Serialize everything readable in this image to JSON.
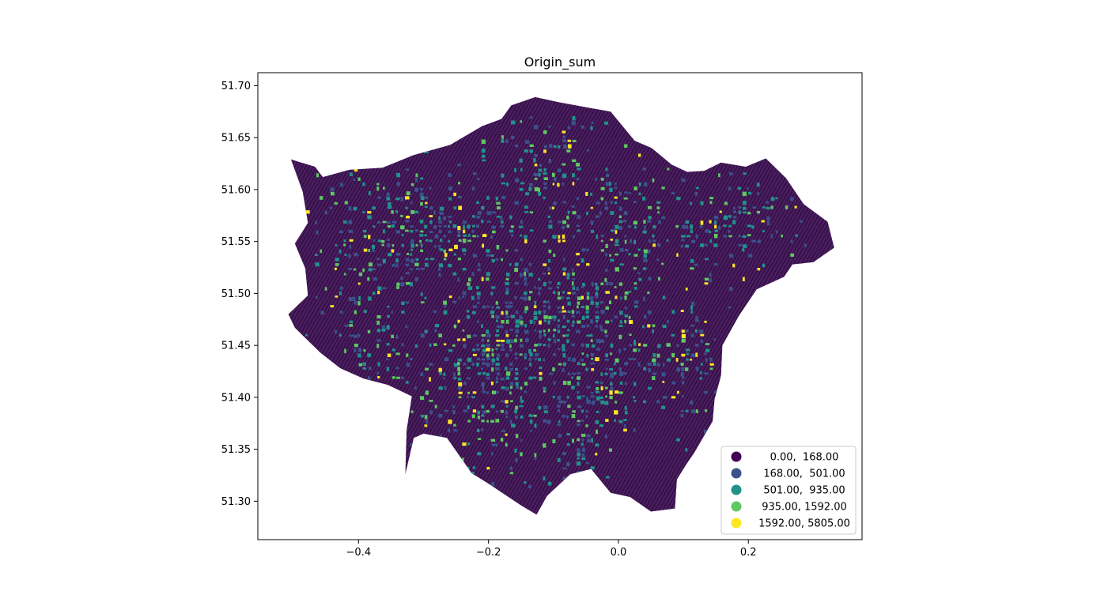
{
  "chart_data": {
    "type": "map",
    "title": "Origin_sum",
    "xlabel": "",
    "ylabel": "",
    "xlim": [
      -0.555,
      0.375
    ],
    "ylim": [
      51.263,
      51.7125
    ],
    "x_ticks": [
      -0.4,
      -0.2,
      0.0,
      0.2
    ],
    "x_tick_labels": [
      "−0.4",
      "−0.2",
      "0.0",
      "0.2"
    ],
    "y_ticks": [
      51.3,
      51.35,
      51.4,
      51.45,
      51.5,
      51.55,
      51.6,
      51.65,
      51.7
    ],
    "y_tick_labels": [
      "51.30",
      "51.35",
      "51.40",
      "51.45",
      "51.50",
      "51.55",
      "51.60",
      "51.65",
      "51.70"
    ],
    "grid": false,
    "colormap": "viridis",
    "scheme": "quantiles",
    "legend_position": "lower-right",
    "legend": [
      {
        "label": "0.00,  168.00",
        "lo": 0.0,
        "hi": 168.0,
        "color": "#440154"
      },
      {
        "label": "168.00,  501.00",
        "lo": 168.0,
        "hi": 501.0,
        "color": "#3b528b"
      },
      {
        "label": "501.00,  935.00",
        "lo": 501.0,
        "hi": 935.0,
        "color": "#21918c"
      },
      {
        "label": "935.00, 1592.00",
        "lo": 935.0,
        "hi": 1592.0,
        "color": "#5ec962"
      },
      {
        "label": "1592.00, 5805.00",
        "lo": 1592.0,
        "hi": 5805.0,
        "color": "#fde725"
      }
    ],
    "boundary_lonlat": [
      [
        -0.165,
        51.681
      ],
      [
        -0.128,
        51.689
      ],
      [
        -0.091,
        51.684
      ],
      [
        -0.048,
        51.679
      ],
      [
        -0.012,
        51.675
      ],
      [
        0.025,
        51.647
      ],
      [
        0.051,
        51.64
      ],
      [
        0.082,
        51.624
      ],
      [
        0.106,
        51.617
      ],
      [
        0.132,
        51.618
      ],
      [
        0.158,
        51.626
      ],
      [
        0.196,
        51.622
      ],
      [
        0.227,
        51.63
      ],
      [
        0.258,
        51.611
      ],
      [
        0.285,
        51.586
      ],
      [
        0.322,
        51.569
      ],
      [
        0.332,
        51.544
      ],
      [
        0.3,
        51.53
      ],
      [
        0.268,
        51.528
      ],
      [
        0.255,
        51.516
      ],
      [
        0.213,
        51.504
      ],
      [
        0.185,
        51.478
      ],
      [
        0.16,
        51.45
      ],
      [
        0.158,
        51.421
      ],
      [
        0.148,
        51.398
      ],
      [
        0.145,
        51.377
      ],
      [
        0.117,
        51.347
      ],
      [
        0.104,
        51.335
      ],
      [
        0.09,
        51.321
      ],
      [
        0.087,
        51.293
      ],
      [
        0.05,
        51.29
      ],
      [
        0.018,
        51.304
      ],
      [
        -0.012,
        51.308
      ],
      [
        -0.042,
        51.331
      ],
      [
        -0.074,
        51.326
      ],
      [
        -0.11,
        51.305
      ],
      [
        -0.126,
        51.287
      ],
      [
        -0.15,
        51.296
      ],
      [
        -0.198,
        51.316
      ],
      [
        -0.226,
        51.327
      ],
      [
        -0.264,
        51.361
      ],
      [
        -0.3,
        51.365
      ],
      [
        -0.315,
        51.361
      ],
      [
        -0.328,
        51.326
      ],
      [
        -0.326,
        51.368
      ],
      [
        -0.318,
        51.401
      ],
      [
        -0.355,
        51.412
      ],
      [
        -0.392,
        51.418
      ],
      [
        -0.428,
        51.428
      ],
      [
        -0.459,
        51.443
      ],
      [
        -0.498,
        51.467
      ],
      [
        -0.508,
        51.48
      ],
      [
        -0.478,
        51.498
      ],
      [
        -0.482,
        51.524
      ],
      [
        -0.498,
        51.548
      ],
      [
        -0.478,
        51.568
      ],
      [
        -0.486,
        51.598
      ],
      [
        -0.504,
        51.629
      ],
      [
        -0.467,
        51.622
      ],
      [
        -0.455,
        51.612
      ],
      [
        -0.414,
        51.619
      ],
      [
        -0.363,
        51.621
      ],
      [
        -0.316,
        51.633
      ],
      [
        -0.259,
        51.643
      ],
      [
        -0.21,
        51.661
      ],
      [
        -0.18,
        51.668
      ]
    ]
  }
}
